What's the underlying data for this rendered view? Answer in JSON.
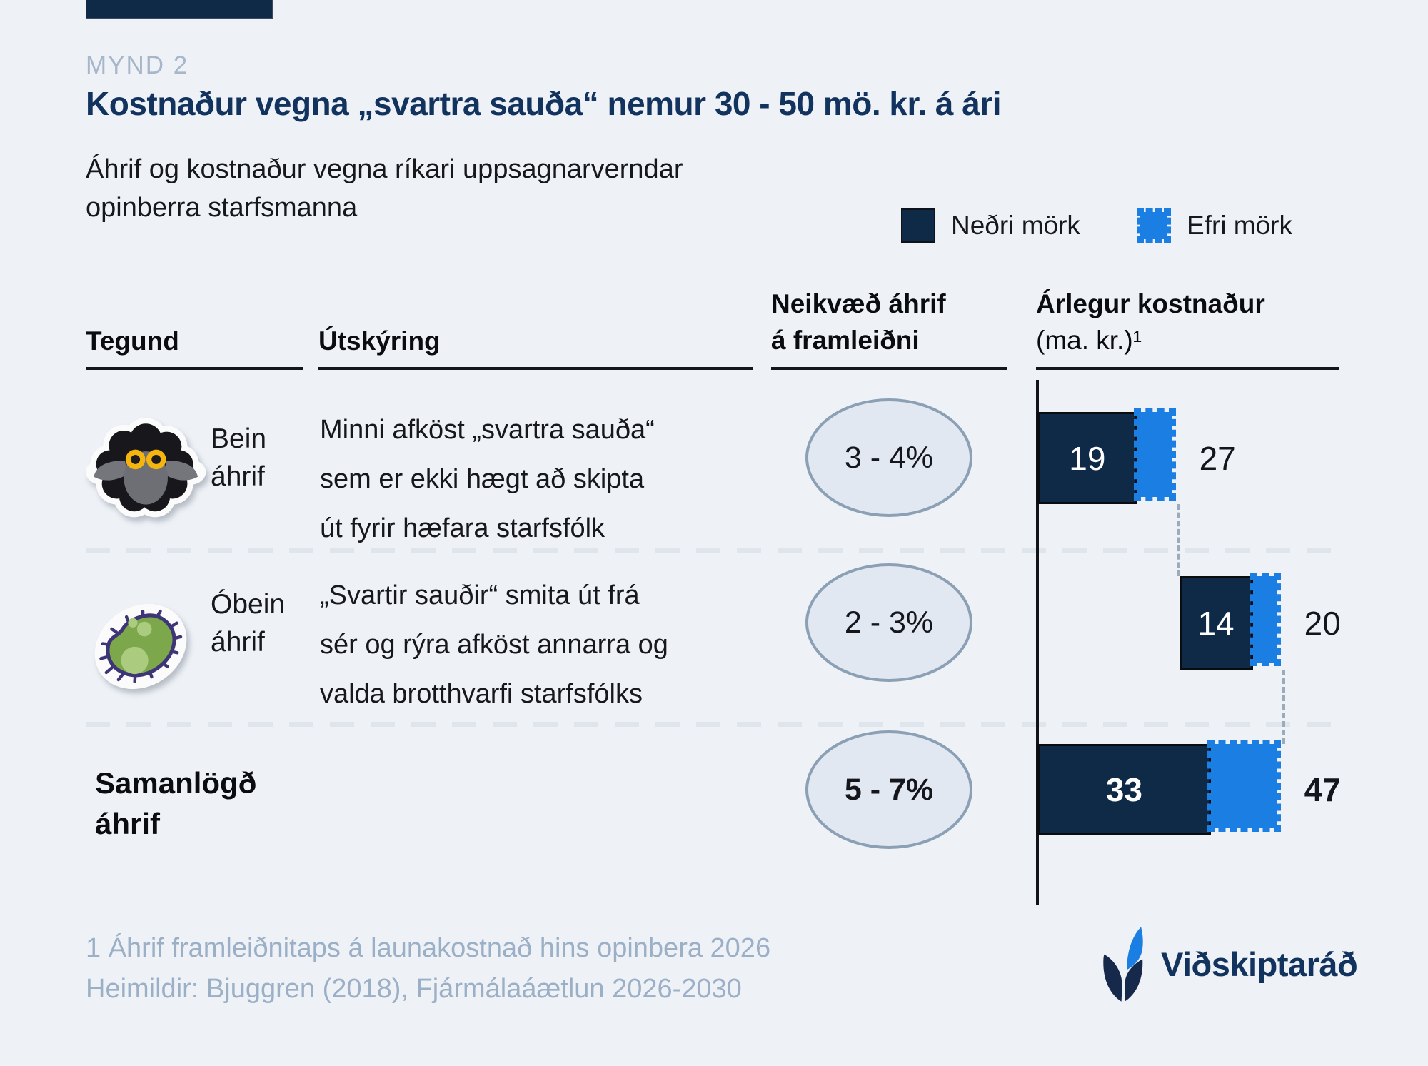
{
  "page": {
    "figure_label": "MYND 2",
    "title": "Kostnaður vegna „svartra sauða“ nemur 30 - 50 mö. kr. á ári",
    "subtitle_line1": "Áhrif og kostnaður vegna ríkari uppsagnarverndar",
    "subtitle_line2": "opinberra starfsmanna",
    "background_color": "#eef2f7",
    "accent_navy": "#0f2a46",
    "accent_blue": "#1a7ee3"
  },
  "legend": {
    "lower_label": "Neðri mörk",
    "upper_label": "Efri mörk"
  },
  "table": {
    "col1_header": "Tegund",
    "col2_header": "Útskýring",
    "col3_header_line1": "Neikvæð áhrif",
    "col3_header_line2": "á framleiðni",
    "col4_header_line1": "Árlegur kostnaður",
    "col4_header_line2": "(ma. kr.)¹"
  },
  "rows": [
    {
      "icon": "black-sheep",
      "type_line1": "Bein",
      "type_line2": "áhrif",
      "desc_lines": [
        "Minni afköst „svartra sauða“",
        "sem er ekki hægt að skipta",
        "út fyrir hæfara starfsfólk"
      ],
      "effect": "3 - 4%"
    },
    {
      "icon": "bacteria",
      "type_line1": "Óbein",
      "type_line2": "áhrif",
      "desc_lines": [
        "„Svartir sauðir“ smita út frá",
        "sér og rýra afköst annarra og",
        "valda brotthvarfi starfsfólks"
      ],
      "effect": "2 - 3%"
    },
    {
      "icon": "none",
      "type_line1": "Samanlögð",
      "type_line2": "áhrif",
      "desc_lines": [],
      "effect": "5 - 7%"
    }
  ],
  "chart_data": {
    "type": "bar",
    "subtype": "horizontal-waterfall-range",
    "categories": [
      "Bein áhrif",
      "Óbein áhrif",
      "Samanlögð áhrif"
    ],
    "series": [
      {
        "name": "Neðri mörk",
        "values": [
          19,
          14,
          33
        ],
        "color": "#0f2a46"
      },
      {
        "name": "Efri mörk",
        "values": [
          27,
          20,
          47
        ],
        "color": "#1a7ee3"
      }
    ],
    "waterfall_offsets": [
      0,
      27,
      0
    ],
    "productivity_effects": [
      "3 - 4%",
      "2 - 3%",
      "5 - 7%"
    ],
    "ylabel": "Árlegur kostnaður (ma. kr.)",
    "xlim": [
      0,
      50
    ],
    "legend_position": "top-right",
    "grid": false
  },
  "footer": {
    "note_line1": "1 Áhrif framleiðnitaps á launakostnað hins opinbera 2026",
    "note_line2": "Heimildir: Bjuggren (2018), Fjármálaáætlun 2026-2030",
    "logo_text": "Viðskiptaráð"
  }
}
